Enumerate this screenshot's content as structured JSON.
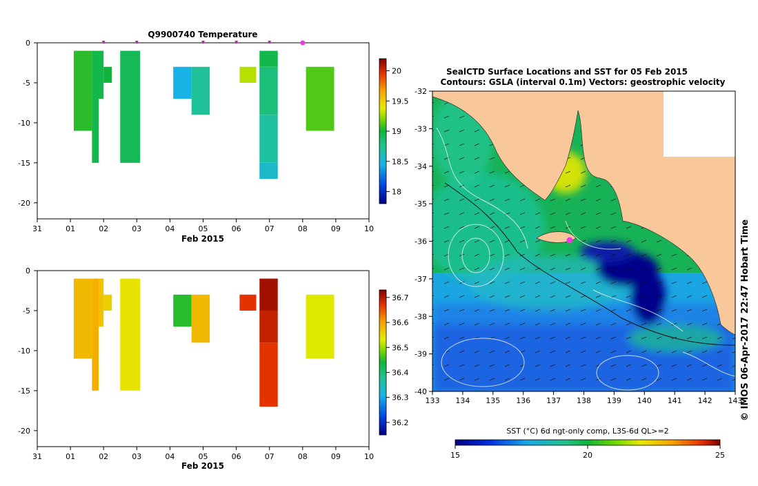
{
  "chart_data": [
    {
      "type": "heatmap",
      "title": "Q9900740  Temperature",
      "xlabel": "Feb 2015",
      "ylabel": "",
      "x_ticks": [
        "31",
        "01",
        "02",
        "03",
        "04",
        "05",
        "06",
        "07",
        "08",
        "09",
        "10"
      ],
      "xlim": [
        -1,
        9
      ],
      "ylim": [
        -22,
        0
      ],
      "y_ticks": [
        0,
        -5,
        -10,
        -15,
        -20
      ],
      "colorbar": {
        "min": 17.8,
        "max": 20.2,
        "ticks": [
          18,
          18.5,
          19,
          19.5,
          20
        ]
      },
      "profile_markers_x": [
        1,
        2,
        4,
        5,
        6
      ],
      "current_marker_x": 7,
      "cells": [
        {
          "x0": 0.1,
          "x1": 0.65,
          "y0": -1,
          "y1": -11,
          "value": 19.05
        },
        {
          "x0": 0.65,
          "x1": 0.85,
          "y0": -1,
          "y1": -15,
          "value": 18.95
        },
        {
          "x0": 0.85,
          "x1": 1.0,
          "y0": -1,
          "y1": -7,
          "value": 18.95
        },
        {
          "x0": 1.0,
          "x1": 1.25,
          "y0": -3,
          "y1": -5,
          "value": 19.0
        },
        {
          "x0": 1.5,
          "x1": 2.1,
          "y0": -1,
          "y1": -15,
          "value": 18.92
        },
        {
          "x0": 3.1,
          "x1": 3.65,
          "y0": -3,
          "y1": -7,
          "value": 18.45
        },
        {
          "x0": 3.65,
          "x1": 4.2,
          "y0": -3,
          "y1": -9,
          "value": 18.72
        },
        {
          "x0": 5.1,
          "x1": 5.6,
          "y0": -3,
          "y1": -5,
          "value": 19.3
        },
        {
          "x0": 5.7,
          "x1": 6.25,
          "y0": -1,
          "y1": -3,
          "value": 18.95
        },
        {
          "x0": 5.7,
          "x1": 6.25,
          "y0": -3,
          "y1": -9,
          "value": 18.82
        },
        {
          "x0": 5.7,
          "x1": 6.25,
          "y0": -9,
          "y1": -15,
          "value": 18.7
        },
        {
          "x0": 5.7,
          "x1": 6.25,
          "y0": -15,
          "y1": -17,
          "value": 18.55
        },
        {
          "x0": 7.1,
          "x1": 7.95,
          "y0": -3,
          "y1": -11,
          "value": 19.12
        }
      ]
    },
    {
      "type": "heatmap",
      "title": "",
      "xlabel": "Feb 2015",
      "ylabel": "",
      "x_ticks": [
        "31",
        "01",
        "02",
        "03",
        "04",
        "05",
        "06",
        "07",
        "08",
        "09",
        "10"
      ],
      "xlim": [
        -1,
        9
      ],
      "ylim": [
        -22,
        0
      ],
      "y_ticks": [
        0,
        -5,
        -10,
        -15,
        -20
      ],
      "colorbar": {
        "min": 36.15,
        "max": 36.73,
        "ticks": [
          36.2,
          36.3,
          36.4,
          36.5,
          36.6,
          36.7
        ]
      },
      "cells": [
        {
          "x0": 0.1,
          "x1": 0.65,
          "y0": -1,
          "y1": -11,
          "value": 36.58
        },
        {
          "x0": 0.65,
          "x1": 0.85,
          "y0": -1,
          "y1": -15,
          "value": 36.59
        },
        {
          "x0": 0.85,
          "x1": 1.0,
          "y0": -1,
          "y1": -7,
          "value": 36.57
        },
        {
          "x0": 1.0,
          "x1": 1.25,
          "y0": -3,
          "y1": -5,
          "value": 36.56
        },
        {
          "x0": 1.5,
          "x1": 2.1,
          "y0": -1,
          "y1": -15,
          "value": 36.54
        },
        {
          "x0": 3.1,
          "x1": 3.65,
          "y0": -3,
          "y1": -7,
          "value": 36.45
        },
        {
          "x0": 3.65,
          "x1": 4.2,
          "y0": -3,
          "y1": -9,
          "value": 36.58
        },
        {
          "x0": 5.1,
          "x1": 5.6,
          "y0": -3,
          "y1": -5,
          "value": 36.67
        },
        {
          "x0": 5.7,
          "x1": 6.25,
          "y0": -1,
          "y1": -5,
          "value": 36.71
        },
        {
          "x0": 5.7,
          "x1": 6.25,
          "y0": -5,
          "y1": -9,
          "value": 36.69
        },
        {
          "x0": 5.7,
          "x1": 6.25,
          "y0": -9,
          "y1": -17,
          "value": 36.67
        },
        {
          "x0": 7.1,
          "x1": 7.95,
          "y0": -3,
          "y1": -11,
          "value": 36.53
        }
      ]
    },
    {
      "type": "heatmap",
      "title": "SealCTD Surface Locations and SST for 05 Feb 2015",
      "subtitle": "Contours: GSLA (interval 0.1m) Vectors: geostrophic velocity",
      "xlabel": "",
      "ylabel": "",
      "xlim": [
        133,
        143
      ],
      "ylim": [
        -40,
        -32
      ],
      "x_ticks": [
        133,
        134,
        135,
        136,
        137,
        138,
        139,
        140,
        141,
        142,
        143
      ],
      "y_ticks": [
        -32,
        -33,
        -34,
        -35,
        -36,
        -37,
        -38,
        -39,
        -40
      ],
      "current_location": {
        "lon": 137.6,
        "lat": -36.0
      },
      "colorbar": {
        "label": "SST (°C) 6d ngt-only comp, L3S-6d QL>=2",
        "min": 15,
        "max": 25,
        "ticks": [
          15,
          20,
          25
        ]
      }
    }
  ],
  "credit": "© IMOS 06-Apr-2017 22:47 Hobart Time",
  "colors": {
    "land": "#f9c89a",
    "marker": "#e838e8"
  }
}
